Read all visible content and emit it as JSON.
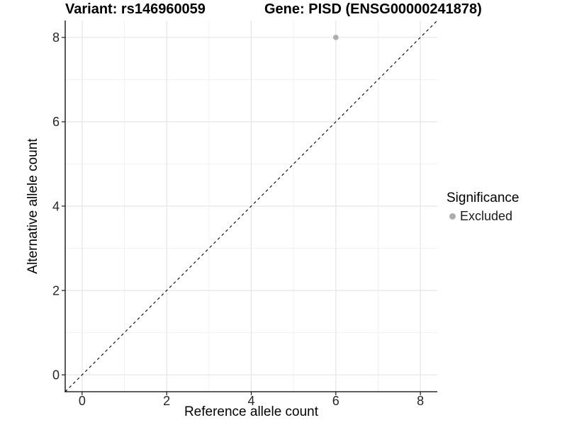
{
  "chart_data": {
    "type": "scatter",
    "title_left": "Variant: rs146960059",
    "title_right": "Gene: PISD (ENSG00000241878)",
    "xlabel": "Reference allele count",
    "ylabel": "Alternative allele count",
    "xlim": [
      -0.4,
      8.4
    ],
    "ylim": [
      -0.4,
      8.4
    ],
    "x_ticks": [
      0,
      2,
      4,
      6,
      8
    ],
    "y_ticks": [
      0,
      2,
      4,
      6,
      8
    ],
    "x_minor": [
      1,
      3,
      5,
      7
    ],
    "y_minor": [
      1,
      3,
      5,
      7
    ],
    "grid": true,
    "identity_line": {
      "style": "dashed",
      "from": [
        -0.4,
        -0.4
      ],
      "to": [
        8.4,
        8.4
      ]
    },
    "points": [
      {
        "x": 6,
        "y": 8,
        "significance": "Excluded"
      }
    ],
    "legend": {
      "position": "right",
      "title": "Significance",
      "items": [
        {
          "label": "Excluded",
          "color": "#adadad"
        }
      ]
    },
    "colors": {
      "point": "#adadad",
      "grid_major": "#e5e5e5",
      "grid_minor": "#f0f0f0",
      "axis_line": "#000000",
      "tick": "#1a1a1a",
      "identity_line": "#000000"
    }
  }
}
